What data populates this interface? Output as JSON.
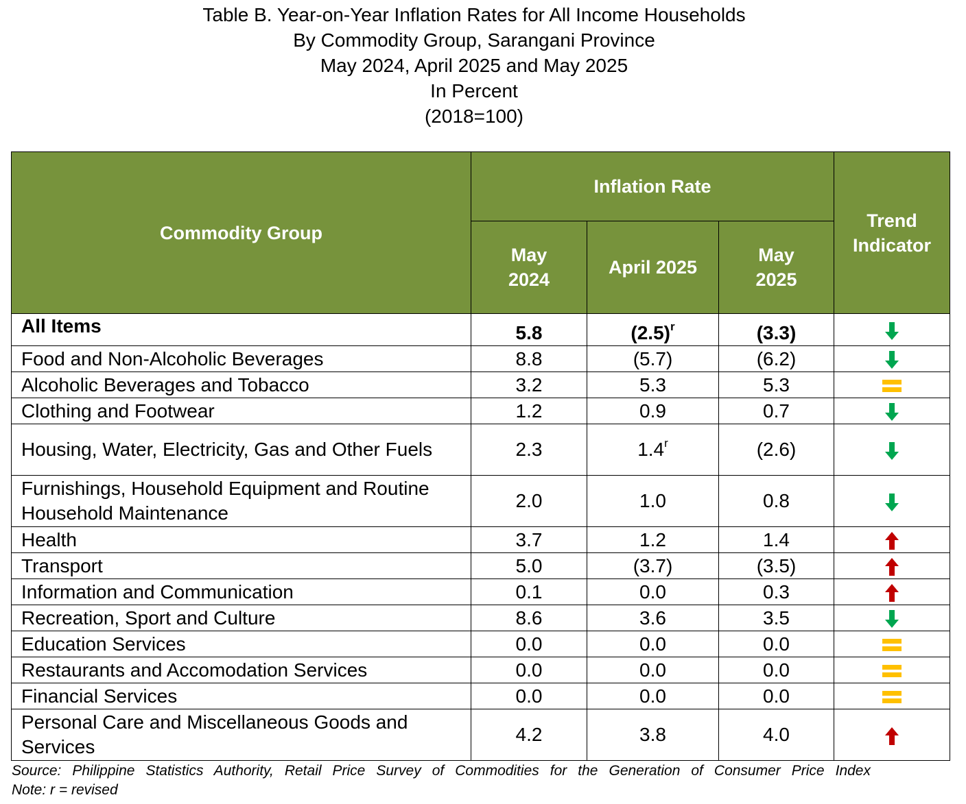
{
  "title_lines": [
    "Table B. Year-on-Year Inflation Rates for All Income Households",
    "By Commodity Group, Sarangani Province",
    "May 2024, April 2025 and May 2025",
    "In Percent",
    "(2018=100)"
  ],
  "headers": {
    "commodity_group": "Commodity Group",
    "inflation_rate": "Inflation Rate",
    "trend_indicator_line1": "Trend",
    "trend_indicator_line2": "Indicator",
    "col1_line1": "May",
    "col1_line2": "2024",
    "col2": "April 2025",
    "col3_line1": "May",
    "col3_line2": "2025"
  },
  "colors": {
    "header_bg": "#77933c",
    "down_arrow": "#00a650",
    "up_arrow": "#c00000",
    "equal_sign": "#ffc000"
  },
  "rows": [
    {
      "name": "All Items",
      "may2024": "5.8",
      "apr2025": "(2.5)",
      "apr2025_sup": "r",
      "may2025": "(3.3)",
      "trend": "down-arrow-icon"
    },
    {
      "name": "Food and Non-Alcoholic Beverages",
      "may2024": "8.8",
      "apr2025": "(5.7)",
      "may2025": "(6.2)",
      "trend": "down-arrow-icon"
    },
    {
      "name": "Alcoholic Beverages and Tobacco",
      "may2024": "3.2",
      "apr2025": "5.3",
      "may2025": "5.3",
      "trend": "equal-icon"
    },
    {
      "name": "Clothing and Footwear",
      "may2024": "1.2",
      "apr2025": "0.9",
      "may2025": "0.7",
      "trend": "down-arrow-icon"
    },
    {
      "name": "Housing, Water, Electricity, Gas and Other Fuels",
      "may2024": "2.3",
      "apr2025": "1.4",
      "apr2025_sup": "r",
      "may2025": "(2.6)",
      "trend": "down-arrow-icon"
    },
    {
      "name": "Furnishings, Household Equipment and Routine Household Maintenance",
      "may2024": "2.0",
      "apr2025": "1.0",
      "may2025": "0.8",
      "trend": "down-arrow-icon"
    },
    {
      "name": "Health",
      "may2024": "3.7",
      "apr2025": "1.2",
      "may2025": "1.4",
      "trend": "up-arrow-icon"
    },
    {
      "name": "Transport",
      "may2024": "5.0",
      "apr2025": "(3.7)",
      "may2025": "(3.5)",
      "trend": "up-arrow-icon"
    },
    {
      "name": "Information and Communication",
      "may2024": "0.1",
      "apr2025": "0.0",
      "may2025": "0.3",
      "trend": "up-arrow-icon"
    },
    {
      "name": "Recreation, Sport and Culture",
      "may2024": "8.6",
      "apr2025": "3.6",
      "may2025": "3.5",
      "trend": "down-arrow-icon"
    },
    {
      "name": "Education Services",
      "may2024": "0.0",
      "apr2025": "0.0",
      "may2025": "0.0",
      "trend": "equal-icon"
    },
    {
      "name": "Restaurants and Accomodation Services",
      "may2024": "0.0",
      "apr2025": "0.0",
      "may2025": "0.0",
      "trend": "equal-icon"
    },
    {
      "name": "Financial Services",
      "may2024": "0.0",
      "apr2025": "0.0",
      "may2025": "0.0",
      "trend": "equal-icon"
    },
    {
      "name": "Personal Care and Miscellaneous Goods and Services",
      "may2024": "4.2",
      "apr2025": "3.8",
      "may2025": "4.0",
      "trend": "up-arrow-icon"
    }
  ],
  "footer": {
    "source": "Source: Philippine Statistics Authority, Retail Price Survey of Commodities for the Generation of Consumer Price Index",
    "note": "Note: r = revised"
  }
}
